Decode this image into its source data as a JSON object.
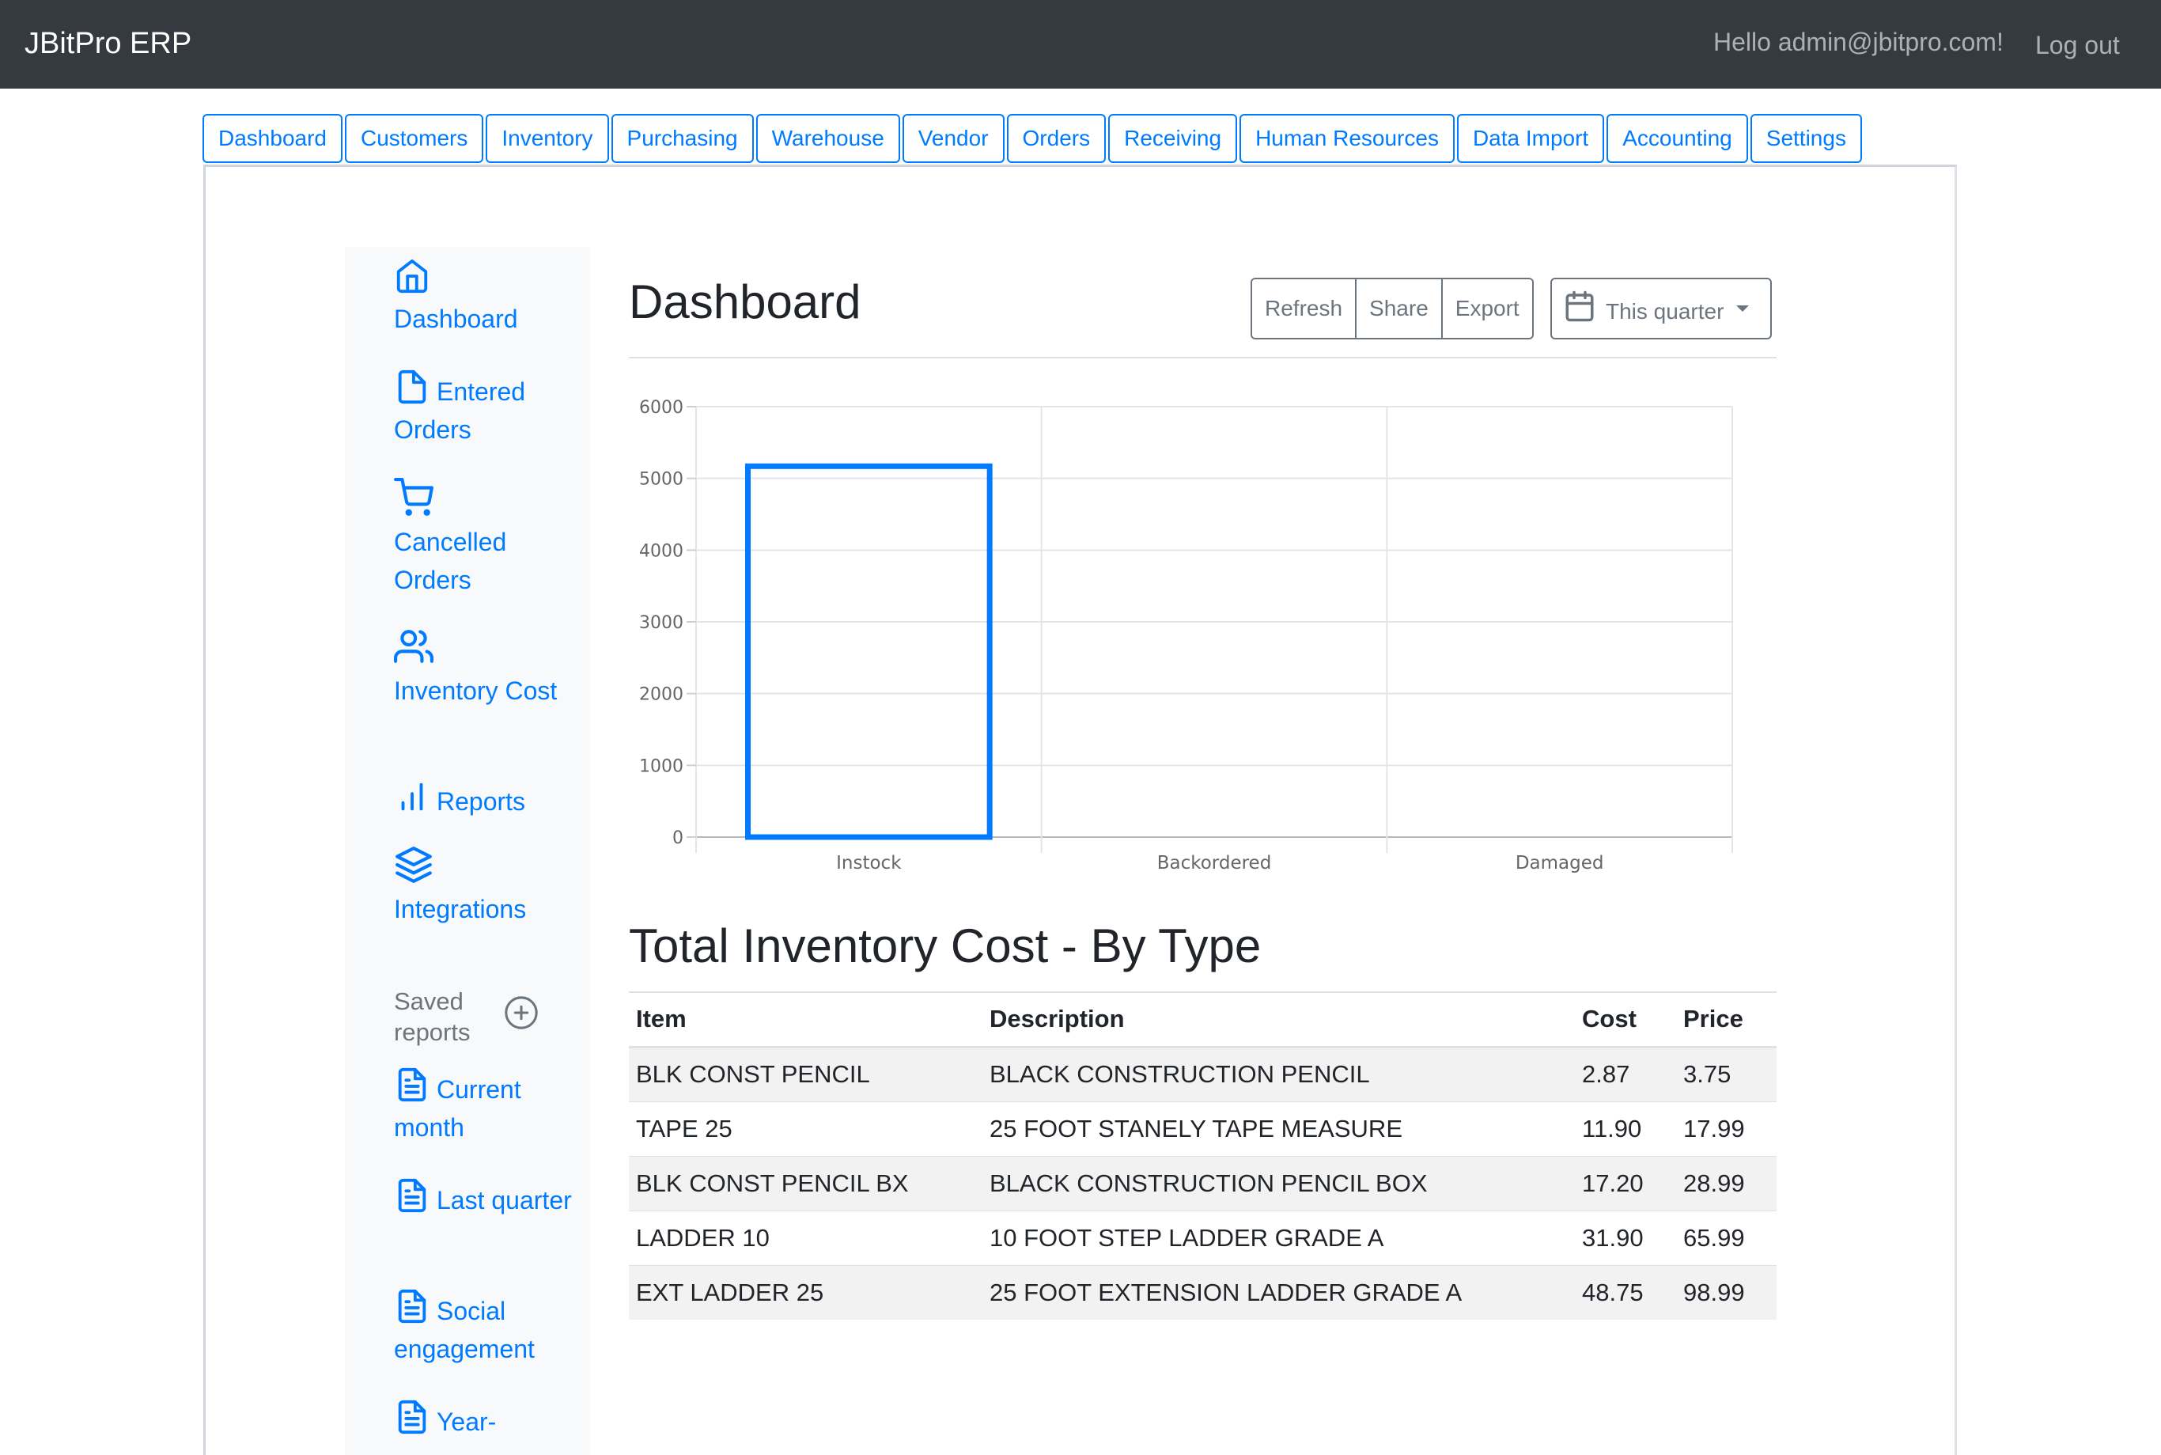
{
  "topbar": {
    "brand": "JBitPro ERP",
    "greeting": "Hello admin@jbitpro.com!",
    "logout": "Log out"
  },
  "tabs": [
    "Dashboard",
    "Customers",
    "Inventory",
    "Purchasing",
    "Warehouse",
    "Vendor",
    "Orders",
    "Receiving",
    "Human Resources",
    "Data Import",
    "Accounting",
    "Settings"
  ],
  "sidebar": {
    "items": [
      {
        "label": "Dashboard",
        "icon": "home-icon"
      },
      {
        "label": "Entered Orders",
        "icon": "file-icon"
      },
      {
        "label": "Cancelled Orders",
        "icon": "shopping-cart-icon"
      },
      {
        "label": "Inventory Cost",
        "icon": "users-icon"
      },
      {
        "label": "Reports",
        "icon": "bar-chart-icon"
      },
      {
        "label": "Integrations",
        "icon": "layers-icon"
      }
    ],
    "saved_heading": "Saved reports",
    "saved_items": [
      {
        "label": "Current month",
        "icon": "file-text-icon"
      },
      {
        "label": "Last quarter",
        "icon": "file-text-icon"
      },
      {
        "label": "Social engagement",
        "icon": "file-text-icon"
      },
      {
        "label": "Year-",
        "icon": "file-text-icon"
      }
    ]
  },
  "main": {
    "title": "Dashboard",
    "toolbar": {
      "refresh": "Refresh",
      "share": "Share",
      "export": "Export",
      "range": "This quarter"
    },
    "table_title": "Total Inventory Cost - By Type",
    "table": {
      "headers": [
        "Item",
        "Description",
        "Cost",
        "Price"
      ],
      "rows": [
        [
          "BLK CONST PENCIL",
          "BLACK CONSTRUCTION PENCIL",
          "2.87",
          "3.75"
        ],
        [
          "TAPE 25",
          "25 FOOT STANELY TAPE MEASURE",
          "11.90",
          "17.99"
        ],
        [
          "BLK CONST PENCIL BX",
          "BLACK CONSTRUCTION PENCIL BOX",
          "17.20",
          "28.99"
        ],
        [
          "LADDER 10",
          "10 FOOT STEP LADDER GRADE A",
          "31.90",
          "65.99"
        ],
        [
          "EXT LADDER 25",
          "25 FOOT EXTENSION LADDER GRADE A",
          "48.75",
          "98.99"
        ]
      ]
    }
  },
  "chart_data": {
    "type": "bar",
    "categories": [
      "Instock",
      "Backordered",
      "Damaged"
    ],
    "values": [
      5170,
      0,
      0
    ],
    "ylim": [
      0,
      6000
    ],
    "yticks": [
      0,
      1000,
      2000,
      3000,
      4000,
      5000,
      6000
    ],
    "bar_color": "#007bff",
    "grid": true,
    "legend": "none"
  }
}
